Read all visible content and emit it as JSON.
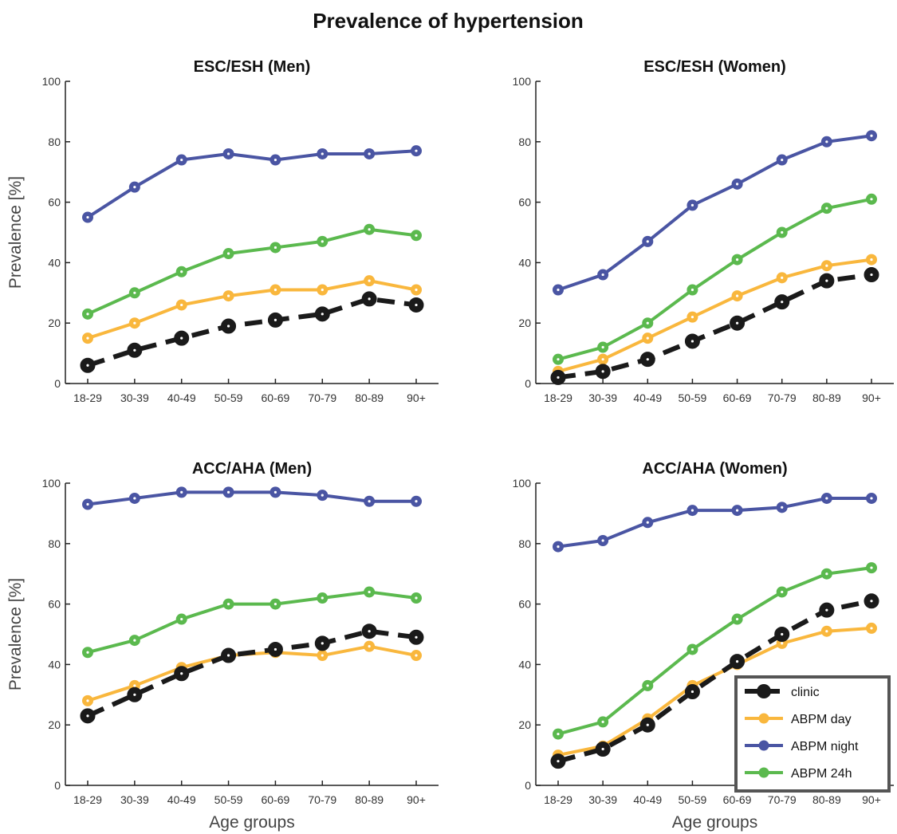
{
  "figure_title": "Prevalence of hypertension",
  "colors": {
    "clinic": "#1a1a1a",
    "abpm_day": "#f9b73d",
    "abpm_night": "#4a55a3",
    "abpm_24h": "#5bb94e"
  },
  "legend": {
    "placement": "bottom-right of ACC/AHA (Women) panel",
    "entries": [
      "clinic",
      "ABPM day",
      "ABPM night",
      "ABPM 24h"
    ]
  },
  "chart_data": [
    {
      "type": "line",
      "title": "ESC/ESH (Men)",
      "xlabel": "",
      "ylabel": "Prevalence [%]",
      "ylim": [
        0,
        100
      ],
      "yticks": [
        "0",
        "20",
        "40",
        "60",
        "80",
        "100"
      ],
      "categories": [
        "18-29",
        "30-39",
        "40-49",
        "50-59",
        "60-69",
        "70-79",
        "80-89",
        "90+"
      ],
      "series": [
        {
          "name": "clinic",
          "values": [
            6,
            11,
            15,
            19,
            21,
            23,
            28,
            26
          ]
        },
        {
          "name": "ABPM day",
          "values": [
            15,
            20,
            26,
            29,
            31,
            31,
            34,
            31
          ]
        },
        {
          "name": "ABPM night",
          "values": [
            55,
            65,
            74,
            76,
            74,
            76,
            76,
            77
          ]
        },
        {
          "name": "ABPM 24h",
          "values": [
            23,
            30,
            37,
            43,
            45,
            47,
            51,
            49
          ]
        }
      ]
    },
    {
      "type": "line",
      "title": "ESC/ESH (Women)",
      "xlabel": "",
      "ylabel": "",
      "ylim": [
        0,
        100
      ],
      "yticks": [
        "0",
        "20",
        "40",
        "60",
        "80",
        "100"
      ],
      "categories": [
        "18-29",
        "30-39",
        "40-49",
        "50-59",
        "60-69",
        "70-79",
        "80-89",
        "90+"
      ],
      "series": [
        {
          "name": "clinic",
          "values": [
            2,
            4,
            8,
            14,
            20,
            27,
            34,
            36
          ]
        },
        {
          "name": "ABPM day",
          "values": [
            4,
            8,
            15,
            22,
            29,
            35,
            39,
            41
          ]
        },
        {
          "name": "ABPM night",
          "values": [
            31,
            36,
            47,
            59,
            66,
            74,
            80,
            82
          ]
        },
        {
          "name": "ABPM 24h",
          "values": [
            8,
            12,
            20,
            31,
            41,
            50,
            58,
            61
          ]
        }
      ]
    },
    {
      "type": "line",
      "title": "ACC/AHA (Men)",
      "xlabel": "Age groups",
      "ylabel": "Prevalence [%]",
      "ylim": [
        0,
        100
      ],
      "yticks": [
        "0",
        "20",
        "40",
        "60",
        "80",
        "100"
      ],
      "categories": [
        "18-29",
        "30-39",
        "40-49",
        "50-59",
        "60-69",
        "70-79",
        "80-89",
        "90+"
      ],
      "series": [
        {
          "name": "clinic",
          "values": [
            23,
            30,
            37,
            43,
            45,
            47,
            51,
            49
          ]
        },
        {
          "name": "ABPM day",
          "values": [
            28,
            33,
            39,
            43,
            44,
            43,
            46,
            43
          ]
        },
        {
          "name": "ABPM night",
          "values": [
            93,
            95,
            97,
            97,
            97,
            96,
            94,
            94
          ]
        },
        {
          "name": "ABPM 24h",
          "values": [
            44,
            48,
            55,
            60,
            60,
            62,
            64,
            62
          ]
        }
      ]
    },
    {
      "type": "line",
      "title": "ACC/AHA (Women)",
      "xlabel": "Age groups",
      "ylabel": "",
      "ylim": [
        0,
        100
      ],
      "yticks": [
        "0",
        "20",
        "40",
        "60",
        "80",
        "100"
      ],
      "categories": [
        "18-29",
        "30-39",
        "40-49",
        "50-59",
        "60-69",
        "70-79",
        "80-89",
        "90+"
      ],
      "series": [
        {
          "name": "clinic",
          "values": [
            8,
            12,
            20,
            31,
            41,
            50,
            58,
            61
          ]
        },
        {
          "name": "ABPM day",
          "values": [
            10,
            13,
            22,
            33,
            40,
            47,
            51,
            52
          ]
        },
        {
          "name": "ABPM night",
          "values": [
            79,
            81,
            87,
            91,
            91,
            92,
            95,
            95
          ]
        },
        {
          "name": "ABPM 24h",
          "values": [
            17,
            21,
            33,
            45,
            55,
            64,
            70,
            72
          ]
        }
      ]
    }
  ]
}
